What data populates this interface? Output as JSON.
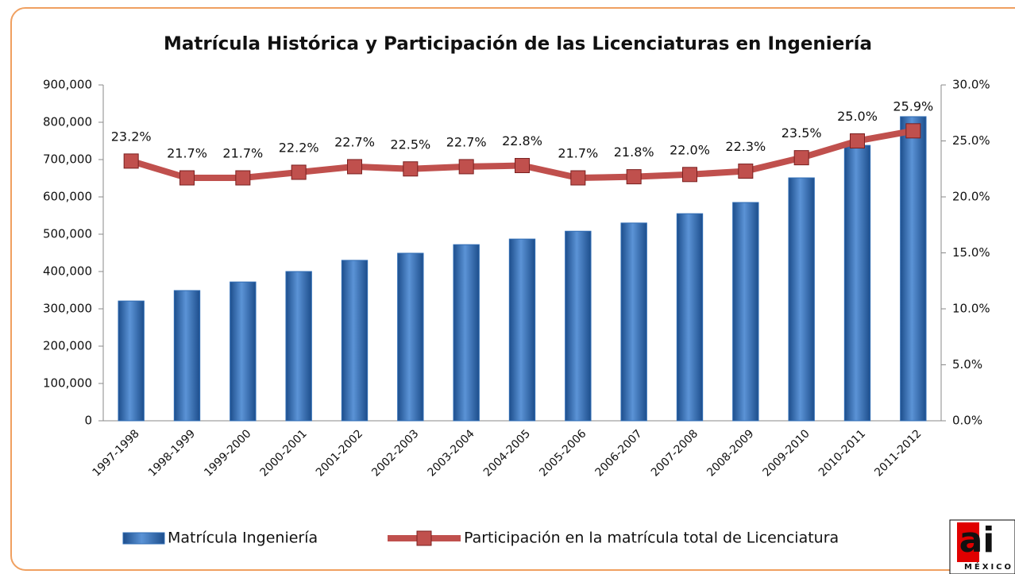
{
  "chart_data": {
    "type": "bar_line",
    "title": "Matrícula Histórica y Participación de las Licenciaturas en Ingeniería",
    "categories": [
      "1997-1998",
      "1998-1999",
      "1999-2000",
      "2000-2001",
      "2001-2002",
      "2002-2003",
      "2003-2004",
      "2004-2005",
      "2005-2006",
      "2006-2007",
      "2007-2008",
      "2008-2009",
      "2009-2010",
      "2010-2011",
      "2011-2012"
    ],
    "series": [
      {
        "name": "Matrícula Ingeniería",
        "type": "bar",
        "color": "#2f6cb4",
        "values": [
          321000,
          349000,
          372000,
          400000,
          430000,
          449000,
          472000,
          487000,
          508000,
          530000,
          555000,
          585000,
          651000,
          738000,
          815000
        ]
      },
      {
        "name": "Participación en la matrícula total de Licenciatura",
        "type": "line",
        "axis": "y2",
        "color": "#c0504d",
        "values": [
          23.2,
          21.7,
          21.7,
          22.2,
          22.7,
          22.5,
          22.7,
          22.8,
          21.7,
          21.8,
          22.0,
          22.3,
          23.5,
          25.0,
          25.9
        ],
        "value_labels": [
          "23.2%",
          "21.7%",
          "21.7%",
          "22.2%",
          "22.7%",
          "22.5%",
          "22.7%",
          "22.8%",
          "21.7%",
          "21.8%",
          "22.0%",
          "22.3%",
          "23.5%",
          "25.0%",
          "25.9%"
        ]
      }
    ],
    "ylim": [
      0,
      900000
    ],
    "yticks": [
      0,
      {
        "value": 100000,
        "label": "100,000"
      },
      {
        "value": 200000,
        "label": "200,000"
      },
      {
        "value": 300000,
        "label": "300,000"
      },
      {
        "value": 400000,
        "label": "400,000"
      },
      {
        "value": 500000,
        "label": "500,000"
      },
      {
        "value": 600000,
        "label": "600,000"
      },
      {
        "value": 700000,
        "label": "700,000"
      },
      {
        "value": 800000,
        "label": "800,000"
      },
      {
        "value": 900000,
        "label": "900,000"
      }
    ],
    "y2lim": [
      0,
      30
    ],
    "y2ticks": [
      {
        "value": 0,
        "label": "0.0%"
      },
      {
        "value": 5,
        "label": "5.0%"
      },
      {
        "value": 10,
        "label": "10.0%"
      },
      {
        "value": 15,
        "label": "15.0%"
      },
      {
        "value": 20,
        "label": "20.0%"
      },
      {
        "value": 25,
        "label": "25.0%"
      },
      {
        "value": 30,
        "label": "30.0%"
      }
    ],
    "grid": false,
    "legend": "bottom"
  },
  "logo": {
    "mark": "ai",
    "text": "MÉXICO"
  }
}
